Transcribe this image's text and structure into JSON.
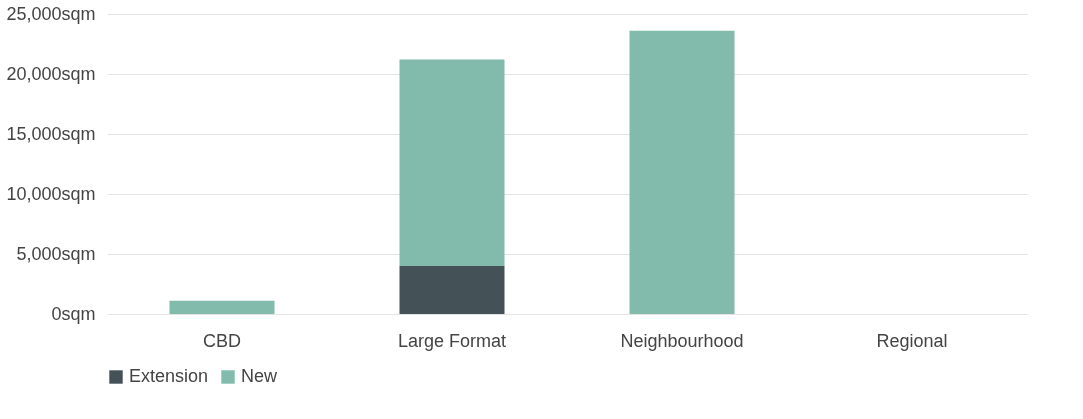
{
  "chart_data": {
    "type": "bar",
    "stacked": true,
    "categories": [
      "CBD",
      "Large Format",
      "Neighbourhood",
      "Regional"
    ],
    "series": [
      {
        "name": "Extension",
        "color": "#445257",
        "values": [
          0,
          4000,
          0,
          0
        ]
      },
      {
        "name": "New",
        "color": "#82bbac",
        "values": [
          1100,
          17200,
          23600,
          0
        ]
      }
    ],
    "ylim": [
      0,
      25000
    ],
    "yticks": [
      {
        "value": 0,
        "label": "0sqm"
      },
      {
        "value": 5000,
        "label": "5,000sqm"
      },
      {
        "value": 10000,
        "label": "10,000sqm"
      },
      {
        "value": 15000,
        "label": "15,000sqm"
      },
      {
        "value": 20000,
        "label": "20,000sqm"
      },
      {
        "value": 25000,
        "label": "25,000sqm"
      }
    ],
    "grid": "y",
    "legend": "bottom"
  }
}
